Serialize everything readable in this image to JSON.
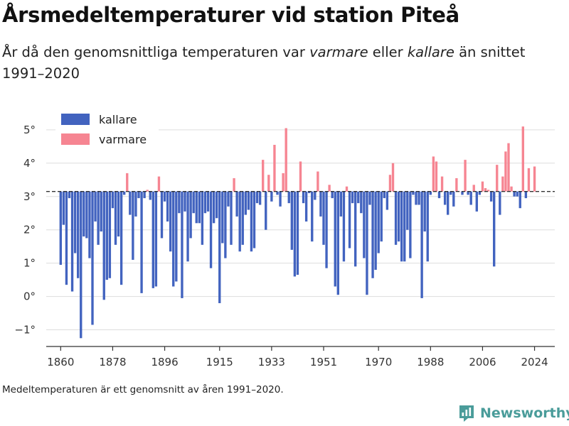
{
  "title": "Årsmedeltemperaturer vid station Piteå",
  "subtitle": {
    "part1": "År då den genomsnittliga temperaturen var ",
    "warm_word": "varmare",
    "part2": " eller ",
    "cold_word": "kallare",
    "part3": " än snittet 1991–2020"
  },
  "footnote": "Medeltemperaturen är ett genomsnitt av åren 1991–2020.",
  "brand": "Newsworthy",
  "colors": {
    "cold": "#4263bf",
    "warm": "#f68592",
    "grid": "#dddddd",
    "baseline": "#333333",
    "brand": "#4a9c9a"
  },
  "chart_data": {
    "type": "bar",
    "baseline": 3.15,
    "xlim": [
      1855,
      2031
    ],
    "ylim": [
      -1.5,
      5.7
    ],
    "x_ticks": [
      "1860",
      "1878",
      "1896",
      "1915",
      "1933",
      "1951",
      "1970",
      "1988",
      "2006",
      "2024"
    ],
    "y_ticks": [
      "−1°",
      "0°",
      "1°",
      "2°",
      "3°",
      "4°",
      "5°"
    ],
    "legend": [
      {
        "key": "cold",
        "label": "kallare"
      },
      {
        "key": "warm",
        "label": "varmare"
      }
    ],
    "series": [
      {
        "name": "Årsmedeltemperatur",
        "start_year": 1860,
        "values": [
          0.95,
          2.15,
          0.35,
          2.95,
          0.15,
          1.3,
          0.55,
          -1.25,
          1.8,
          1.75,
          1.15,
          -0.85,
          2.25,
          1.55,
          1.95,
          -0.1,
          0.5,
          0.55,
          2.65,
          1.55,
          1.8,
          0.35,
          3.05,
          3.7,
          2.45,
          1.1,
          2.4,
          2.95,
          0.1,
          2.95,
          3.2,
          2.9,
          0.25,
          0.3,
          3.6,
          1.75,
          2.85,
          2.25,
          1.35,
          0.3,
          0.45,
          2.5,
          -0.05,
          2.55,
          1.05,
          1.75,
          2.5,
          2.2,
          2.2,
          1.55,
          2.5,
          2.55,
          0.85,
          2.2,
          2.35,
          -0.2,
          1.6,
          1.15,
          2.7,
          1.55,
          3.55,
          2.4,
          1.35,
          1.55,
          2.45,
          2.6,
          1.35,
          1.45,
          2.8,
          2.75,
          4.1,
          2.0,
          3.65,
          2.85,
          4.55,
          3.05,
          2.7,
          3.7,
          5.05,
          2.8,
          1.4,
          0.6,
          0.65,
          4.05,
          2.8,
          2.25,
          3.1,
          1.65,
          2.9,
          3.75,
          2.4,
          1.55,
          0.85,
          3.35,
          2.95,
          0.3,
          0.05,
          2.4,
          1.05,
          3.3,
          1.45,
          2.8,
          0.9,
          2.8,
          2.5,
          1.15,
          0.05,
          2.75,
          0.55,
          0.8,
          1.3,
          1.65,
          2.95,
          2.6,
          3.65,
          4.0,
          1.55,
          1.65,
          1.05,
          1.05,
          2.0,
          1.15,
          3.05,
          2.75,
          2.75,
          -0.05,
          1.95,
          1.05,
          3.05,
          4.2,
          4.05,
          2.95,
          3.6,
          2.75,
          2.45,
          3.05,
          2.7,
          3.55,
          3.15,
          3.05,
          4.1,
          3.05,
          2.75,
          3.35,
          2.55,
          3.05,
          3.45,
          3.25,
          3.2,
          2.85,
          0.9,
          3.95,
          2.45,
          3.6,
          4.35,
          4.6,
          3.3,
          3.0,
          3.0,
          2.65,
          5.1,
          2.95,
          3.85,
          3.15,
          3.9
        ]
      }
    ]
  }
}
